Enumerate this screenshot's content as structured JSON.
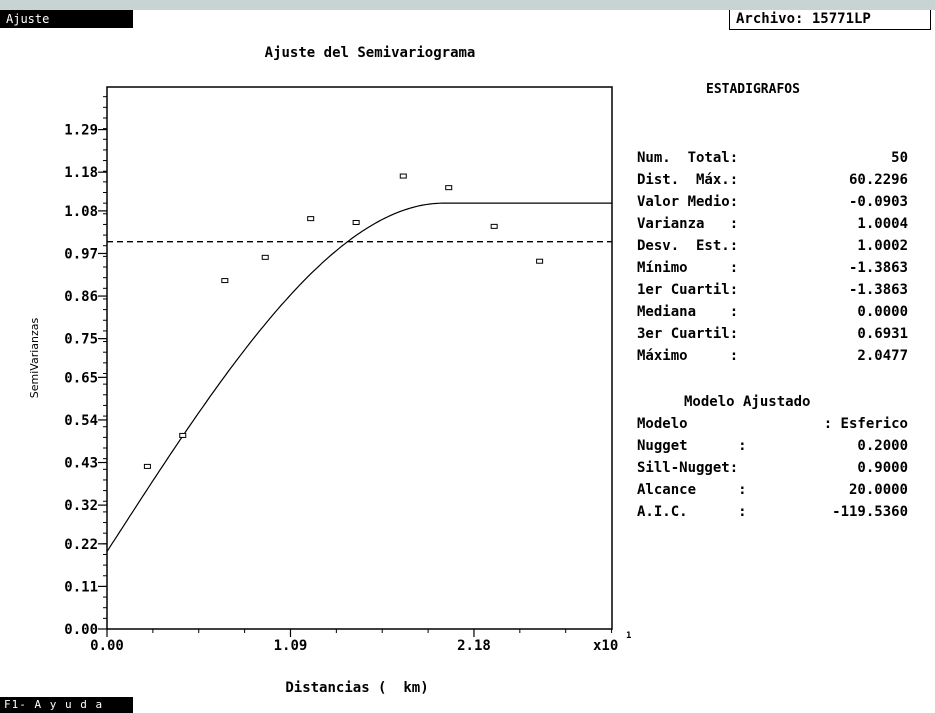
{
  "window": {
    "tab_label": "Ajuste",
    "file_label": "Archivo: 15771LP",
    "help_label": "F1- A y u d a"
  },
  "chart_data": {
    "type": "scatter",
    "title": "Ajuste del Semivariograma",
    "xlabel": "Distancias (  km)",
    "ylabel": "SemiVarianzas",
    "x_scale_note": "x10",
    "x_scale_exp": "1",
    "xlim": [
      0,
      3.0
    ],
    "ylim": [
      0,
      1.4
    ],
    "x_ticks": [
      {
        "value": 0.0,
        "label": "0.00"
      },
      {
        "value": 1.09,
        "label": "1.09"
      },
      {
        "value": 2.18,
        "label": "2.18"
      }
    ],
    "y_ticks": [
      {
        "value": 0.0,
        "label": "0.00"
      },
      {
        "value": 0.11,
        "label": "0.11"
      },
      {
        "value": 0.22,
        "label": "0.22"
      },
      {
        "value": 0.32,
        "label": "0.32"
      },
      {
        "value": 0.43,
        "label": "0.43"
      },
      {
        "value": 0.54,
        "label": "0.54"
      },
      {
        "value": 0.65,
        "label": "0.65"
      },
      {
        "value": 0.75,
        "label": "0.75"
      },
      {
        "value": 0.86,
        "label": "0.86"
      },
      {
        "value": 0.97,
        "label": "0.97"
      },
      {
        "value": 1.08,
        "label": "1.08"
      },
      {
        "value": 1.18,
        "label": "1.18"
      },
      {
        "value": 1.29,
        "label": "1.29"
      }
    ],
    "points": [
      {
        "x": 0.24,
        "y": 0.42
      },
      {
        "x": 0.45,
        "y": 0.5
      },
      {
        "x": 0.7,
        "y": 0.9
      },
      {
        "x": 0.94,
        "y": 0.96
      },
      {
        "x": 1.21,
        "y": 1.06
      },
      {
        "x": 1.48,
        "y": 1.05
      },
      {
        "x": 1.76,
        "y": 1.17
      },
      {
        "x": 2.03,
        "y": 1.14
      },
      {
        "x": 2.3,
        "y": 1.04
      },
      {
        "x": 2.57,
        "y": 0.95
      }
    ],
    "model": {
      "type": "spherical",
      "nugget": 0.2,
      "sill": 1.1,
      "range": 2.0
    },
    "variance_line": 1.0004,
    "grid": false
  },
  "stats": {
    "title": "ESTADIGRAFOS",
    "rows": [
      {
        "label": "Num.  Total:",
        "value": "50"
      },
      {
        "label": "Dist.  Máx.:",
        "value": "60.2296"
      },
      {
        "label": "Valor Medio:",
        "value": "-0.0903"
      },
      {
        "label": "Varianza   :",
        "value": "1.0004"
      },
      {
        "label": "Desv.  Est.:",
        "value": "1.0002"
      },
      {
        "label": "Mínimo     :",
        "value": "-1.3863"
      },
      {
        "label": "1er Cuartil:",
        "value": "-1.3863"
      },
      {
        "label": "Mediana    :",
        "value": "0.0000"
      },
      {
        "label": "3er Cuartil:",
        "value": "0.6931"
      },
      {
        "label": "Máximo     :",
        "value": "2.0477"
      }
    ]
  },
  "model": {
    "title": "Modelo Ajustado",
    "rows": [
      {
        "label": "Modelo",
        "value": ": Esferico"
      },
      {
        "label": "Nugget      :",
        "value": "0.2000"
      },
      {
        "label": "Sill-Nugget:",
        "value": "0.9000"
      },
      {
        "label": "Alcance     :",
        "value": "20.0000"
      },
      {
        "label": "A.I.C.      :",
        "value": "-119.5360"
      }
    ]
  }
}
